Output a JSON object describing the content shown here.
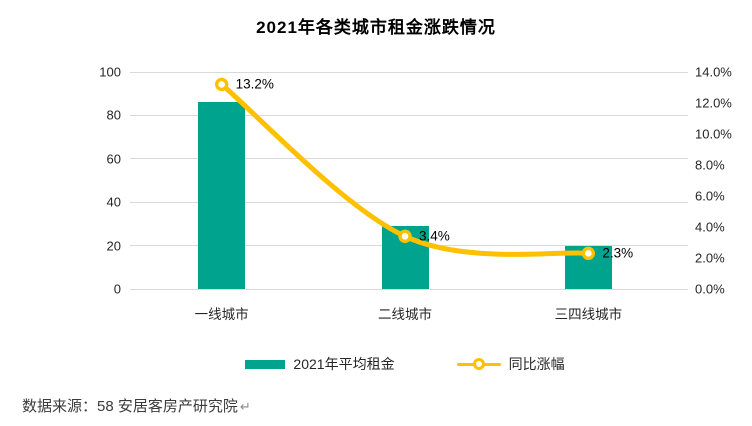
{
  "title": "2021年各类城市租金涨跌情况",
  "source_note": {
    "text": "数据来源：58 安居客房产研究院",
    "return_mark": "↵"
  },
  "colors": {
    "bar": "#00A38D",
    "line": "#FFC000",
    "grid": "#d9d9d9",
    "marker_fill": "#ffffff",
    "text": "#262626",
    "title": "#000000"
  },
  "chart_data": {
    "type": "bar",
    "subtype": "combo-bar-line",
    "title": "2021年各类城市租金涨跌情况",
    "categories": [
      "一线城市",
      "二线城市",
      "三四线城市"
    ],
    "series": [
      {
        "name": "2021年平均租金",
        "type": "bar",
        "axis": "left",
        "values": [
          86,
          29,
          20
        ]
      },
      {
        "name": "同比涨幅",
        "type": "line",
        "axis": "right",
        "values": [
          13.2,
          3.4,
          2.3
        ],
        "point_labels": [
          "13.2%",
          "3.4%",
          "2.3%"
        ]
      }
    ],
    "left_axis": {
      "min": 0,
      "max": 100,
      "ticks": [
        "0",
        "20",
        "40",
        "60",
        "80",
        "100"
      ]
    },
    "right_axis": {
      "min": 0,
      "max": 14,
      "ticks": [
        "0.0%",
        "2.0%",
        "4.0%",
        "6.0%",
        "8.0%",
        "10.0%",
        "12.0%",
        "14.0%"
      ]
    },
    "grid": true,
    "legend_position": "bottom",
    "legend": [
      {
        "label": "2021年平均租金",
        "swatch": "bar"
      },
      {
        "label": "同比涨幅",
        "swatch": "line"
      }
    ]
  }
}
